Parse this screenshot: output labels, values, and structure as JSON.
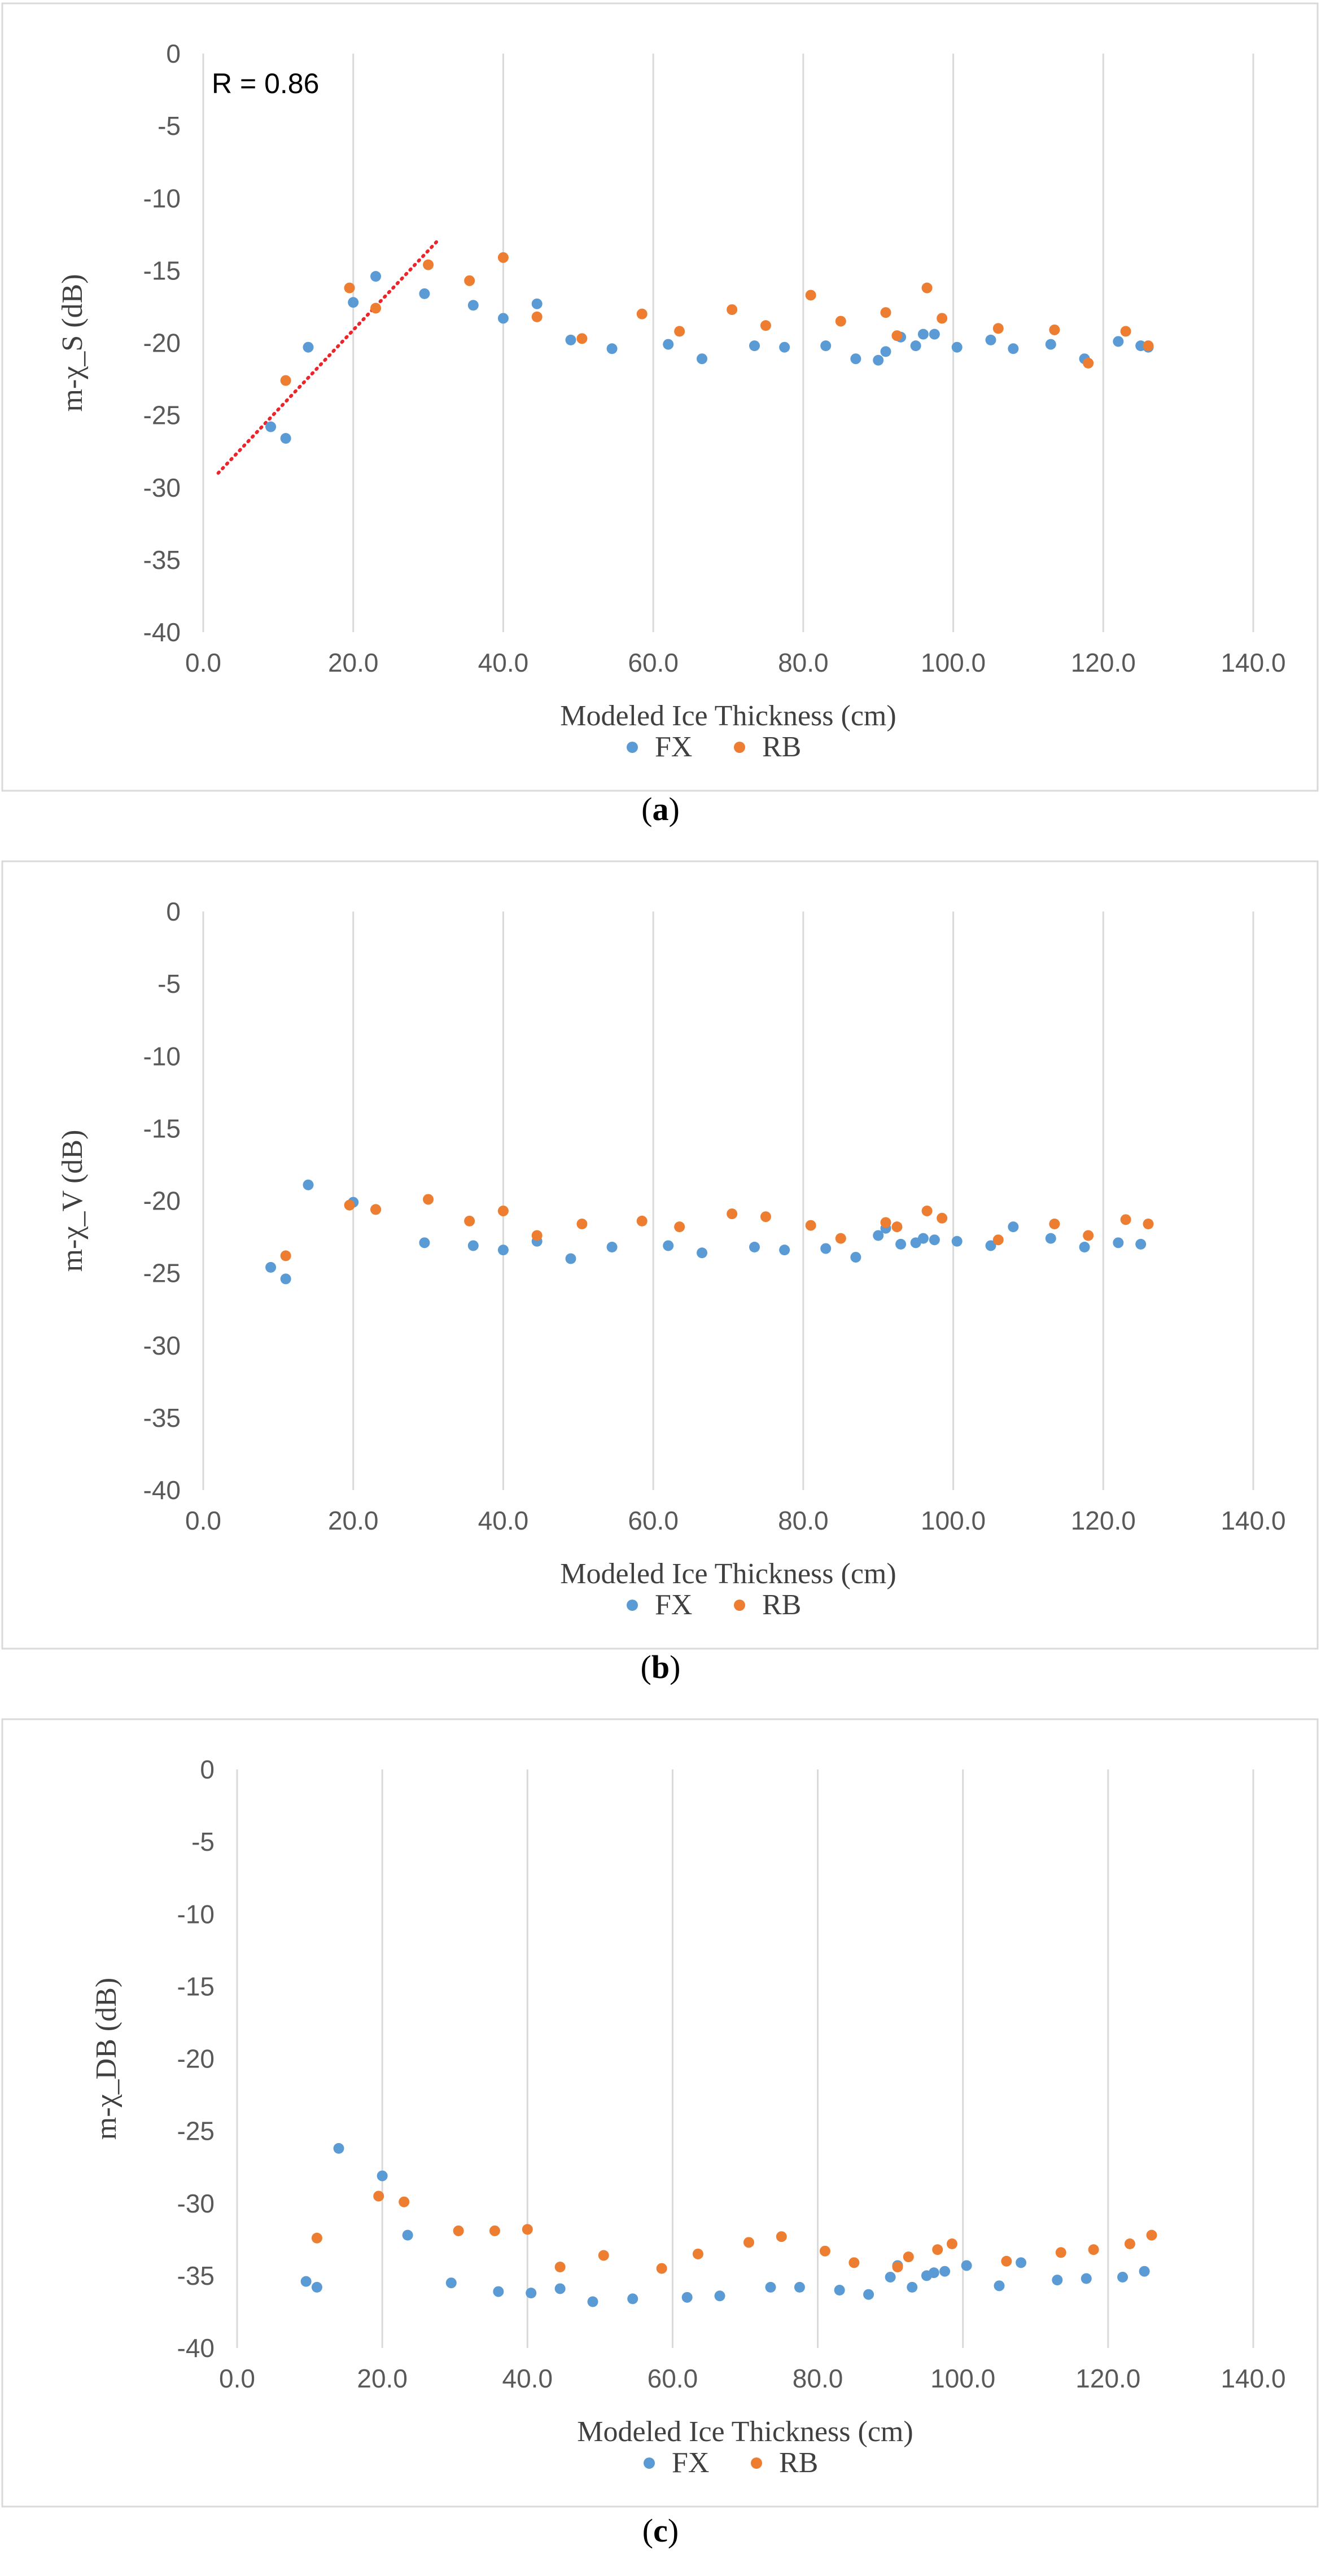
{
  "chart_data": [
    {
      "type": "scatter",
      "caption_letter": "a",
      "ylabel": "m-χ_S (dB)",
      "xlabel": "Modeled Ice Thickness (cm)",
      "xlim": [
        0,
        140
      ],
      "ylim": [
        -40,
        0
      ],
      "xticks": [
        "0.0",
        "20.0",
        "40.0",
        "60.0",
        "80.0",
        "100.0",
        "120.0",
        "140.0"
      ],
      "yticks": [
        "0",
        "-5",
        "-10",
        "-15",
        "-20",
        "-25",
        "-30",
        "-35",
        "-40"
      ],
      "grid": "vertical",
      "legend": "bottom",
      "annotation": "R = 0.86",
      "trendline": {
        "x": [
          2,
          31.5
        ],
        "y": [
          -29,
          -12.8
        ],
        "color": "#e8262b",
        "style": "dotted"
      },
      "series": [
        {
          "name": "FX",
          "color": "#5b9bd5",
          "x": [
            9,
            11,
            14,
            20,
            23,
            29.5,
            36,
            40,
            44.5,
            49,
            54.5,
            62,
            66.5,
            73.5,
            77.5,
            83,
            87,
            90,
            91,
            93,
            95,
            96,
            97.5,
            100.5,
            105,
            108,
            113,
            117.5,
            122,
            125,
            126
          ],
          "y": [
            -25.8,
            -26.6,
            -20.3,
            -17.2,
            -15.4,
            -16.6,
            -17.4,
            -18.3,
            -17.3,
            -19.8,
            -20.4,
            -20.1,
            -21.1,
            -20.2,
            -20.3,
            -20.2,
            -21.1,
            -21.2,
            -20.6,
            -19.6,
            -20.2,
            -19.4,
            -19.4,
            -20.3,
            -19.8,
            -20.4,
            -20.1,
            -21.1,
            -19.9,
            -20.2,
            -20.3
          ]
        },
        {
          "name": "RB",
          "color": "#ed7d31",
          "x": [
            11,
            19.5,
            23,
            30,
            35.5,
            40,
            44.5,
            50.5,
            58.5,
            63.5,
            70.5,
            75,
            81,
            85,
            91,
            92.5,
            96.5,
            98.5,
            106,
            113.5,
            118,
            123,
            126
          ],
          "y": [
            -22.6,
            -16.2,
            -17.6,
            -14.6,
            -15.7,
            -14.1,
            -18.2,
            -19.7,
            -18.0,
            -19.2,
            -17.7,
            -18.8,
            -16.7,
            -18.5,
            -17.9,
            -19.5,
            -16.2,
            -18.3,
            -19.0,
            -19.1,
            -21.4,
            -19.2,
            -20.2
          ]
        }
      ]
    },
    {
      "type": "scatter",
      "caption_letter": "b",
      "ylabel": "m-χ_V (dB)",
      "xlabel": "Modeled Ice Thickness (cm)",
      "xlim": [
        0,
        140
      ],
      "ylim": [
        -40,
        0
      ],
      "xticks": [
        "0.0",
        "20.0",
        "40.0",
        "60.0",
        "80.0",
        "100.0",
        "120.0",
        "140.0"
      ],
      "yticks": [
        "0",
        "-5",
        "-10",
        "-15",
        "-20",
        "-25",
        "-30",
        "-35",
        "-40"
      ],
      "grid": "vertical",
      "legend": "bottom",
      "series": [
        {
          "name": "FX",
          "color": "#5b9bd5",
          "x": [
            9,
            11,
            14,
            20,
            23,
            29.5,
            36,
            40,
            44.5,
            49,
            54.5,
            62,
            66.5,
            73.5,
            77.5,
            83,
            87,
            90,
            91,
            93,
            95,
            96,
            97.5,
            100.5,
            105,
            108,
            113,
            117.5,
            122,
            125
          ],
          "y": [
            -24.6,
            -25.4,
            -18.9,
            -20.1,
            -20.6,
            -22.9,
            -23.1,
            -23.4,
            -22.8,
            -24.0,
            -23.2,
            -23.1,
            -23.6,
            -23.2,
            -23.4,
            -23.3,
            -23.9,
            -22.4,
            -21.9,
            -23.0,
            -22.9,
            -22.6,
            -22.7,
            -22.8,
            -23.1,
            -21.8,
            -22.6,
            -23.2,
            -22.9,
            -23.0
          ]
        },
        {
          "name": "RB",
          "color": "#ed7d31",
          "x": [
            11,
            19.5,
            23,
            30,
            35.5,
            40,
            44.5,
            50.5,
            58.5,
            63.5,
            70.5,
            75,
            81,
            85,
            91,
            92.5,
            96.5,
            98.5,
            106,
            113.5,
            118,
            123,
            126
          ],
          "y": [
            -23.8,
            -20.3,
            -20.6,
            -19.9,
            -21.4,
            -20.7,
            -22.4,
            -21.6,
            -21.4,
            -21.8,
            -20.9,
            -21.1,
            -21.7,
            -22.6,
            -21.5,
            -21.8,
            -20.7,
            -21.2,
            -22.7,
            -21.6,
            -22.4,
            -21.3,
            -21.6
          ]
        }
      ]
    },
    {
      "type": "scatter",
      "caption_letter": "c",
      "ylabel": "m-χ_DB (dB)",
      "xlabel": "Modeled Ice Thickness (cm)",
      "xlim": [
        0,
        140
      ],
      "ylim": [
        -40,
        0
      ],
      "xticks": [
        "0.0",
        "20.0",
        "40.0",
        "60.0",
        "80.0",
        "100.0",
        "120.0",
        "140.0"
      ],
      "yticks": [
        "0",
        "-5",
        "-10",
        "-15",
        "-20",
        "-25",
        "-30",
        "-35",
        "-40"
      ],
      "grid": "vertical",
      "legend": "bottom",
      "series": [
        {
          "name": "FX",
          "color": "#5b9bd5",
          "x": [
            9.5,
            11,
            14,
            20,
            23.5,
            29.5,
            36,
            40.5,
            44.5,
            49,
            54.5,
            62,
            66.5,
            73.5,
            77.5,
            83,
            87,
            90,
            91,
            93,
            95,
            96,
            97.5,
            100.5,
            105,
            108,
            113,
            117,
            122,
            125
          ],
          "y": [
            -35.4,
            -35.8,
            -26.2,
            -28.1,
            -32.2,
            -35.5,
            -36.1,
            -36.2,
            -35.9,
            -36.8,
            -36.6,
            -36.5,
            -36.4,
            -35.8,
            -35.8,
            -36.0,
            -36.3,
            -35.1,
            -34.3,
            -35.8,
            -35.0,
            -34.8,
            -34.7,
            -34.3,
            -35.7,
            -34.1,
            -35.3,
            -35.2,
            -35.1,
            -34.7
          ]
        },
        {
          "name": "RB",
          "color": "#ed7d31",
          "x": [
            11,
            19.5,
            23,
            30.5,
            35.5,
            40,
            44.5,
            50.5,
            58.5,
            63.5,
            70.5,
            75,
            81,
            85,
            91,
            92.5,
            96.5,
            98.5,
            106,
            113.5,
            118,
            123,
            126
          ],
          "y": [
            -32.4,
            -29.5,
            -29.9,
            -31.9,
            -31.9,
            -31.8,
            -34.4,
            -33.6,
            -34.5,
            -33.5,
            -32.7,
            -32.3,
            -33.3,
            -34.1,
            -34.4,
            -33.7,
            -33.2,
            -32.8,
            -34.0,
            -33.4,
            -33.2,
            -32.8,
            -32.2
          ]
        }
      ]
    }
  ]
}
